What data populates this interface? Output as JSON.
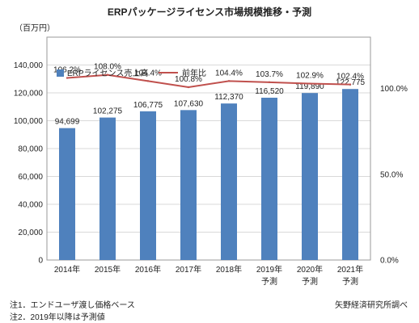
{
  "chart_data": {
    "type": "bar",
    "title": "ERPパッケージライセンス市場規模推移・予測",
    "ylabel": "（百万円）",
    "ylim": [
      0,
      160000
    ],
    "y_ticks": [
      "0",
      "20,000",
      "40,000",
      "60,000",
      "80,000",
      "100,000",
      "120,000",
      "140,000"
    ],
    "y2lim": [
      0,
      130
    ],
    "y2_ticks": [
      {
        "value": 0,
        "label": "0.0%"
      },
      {
        "value": 50,
        "label": "50.0%"
      },
      {
        "value": 100,
        "label": "100.0%"
      }
    ],
    "categories": [
      "2014年",
      "2015年",
      "2016年",
      "2017年",
      "2018年",
      "2019年",
      "2020年",
      "2021年"
    ],
    "category_sub": [
      "",
      "",
      "",
      "",
      "",
      "予測",
      "予測",
      "予測"
    ],
    "series": [
      {
        "name": "ERPライセンス売上高",
        "type": "bar",
        "axis": "left",
        "color": "#4f81bd",
        "values": [
          94699,
          102275,
          106775,
          107630,
          112370,
          116520,
          119890,
          122775
        ],
        "labels": [
          "94,699",
          "102,275",
          "106,775",
          "107,630",
          "112,370",
          "116,520",
          "119,890",
          "122,775"
        ]
      },
      {
        "name": "前年比",
        "type": "line",
        "axis": "right",
        "color": "#c0504d",
        "values": [
          106.2,
          108.0,
          104.4,
          100.8,
          104.4,
          103.7,
          102.9,
          102.4
        ],
        "labels": [
          "106.2%",
          "108.0%",
          "104.4%",
          "100.8%",
          "104.4%",
          "103.7%",
          "102.9%",
          "102.4%"
        ]
      }
    ],
    "grid": true,
    "legend": "top-left"
  },
  "notes": [
    "注1．エンドユーザ渡し価格ベース",
    "注2．2019年以降は予測値"
  ],
  "source": "矢野経済研究所調べ"
}
